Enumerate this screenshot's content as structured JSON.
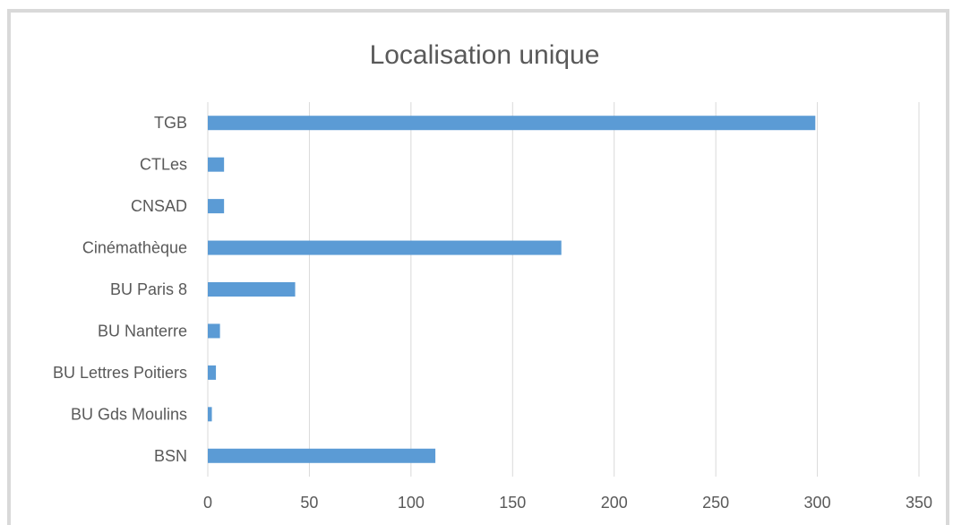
{
  "chart_data": {
    "type": "bar",
    "orientation": "horizontal",
    "title": "Localisation unique",
    "categories": [
      "BSN",
      "BU Gds Moulins",
      "BU Lettres Poitiers",
      "BU Nanterre",
      "BU Paris 8",
      "Cinémathèque",
      "CNSAD",
      "CTLes",
      "TGB"
    ],
    "values": [
      112,
      2,
      4,
      6,
      43,
      174,
      8,
      8,
      299
    ],
    "xlim": [
      0,
      350
    ],
    "xticks": [
      0,
      50,
      100,
      150,
      200,
      250,
      300,
      350
    ],
    "grid": true,
    "legend": "none",
    "bar_color": "#5b9bd5"
  }
}
